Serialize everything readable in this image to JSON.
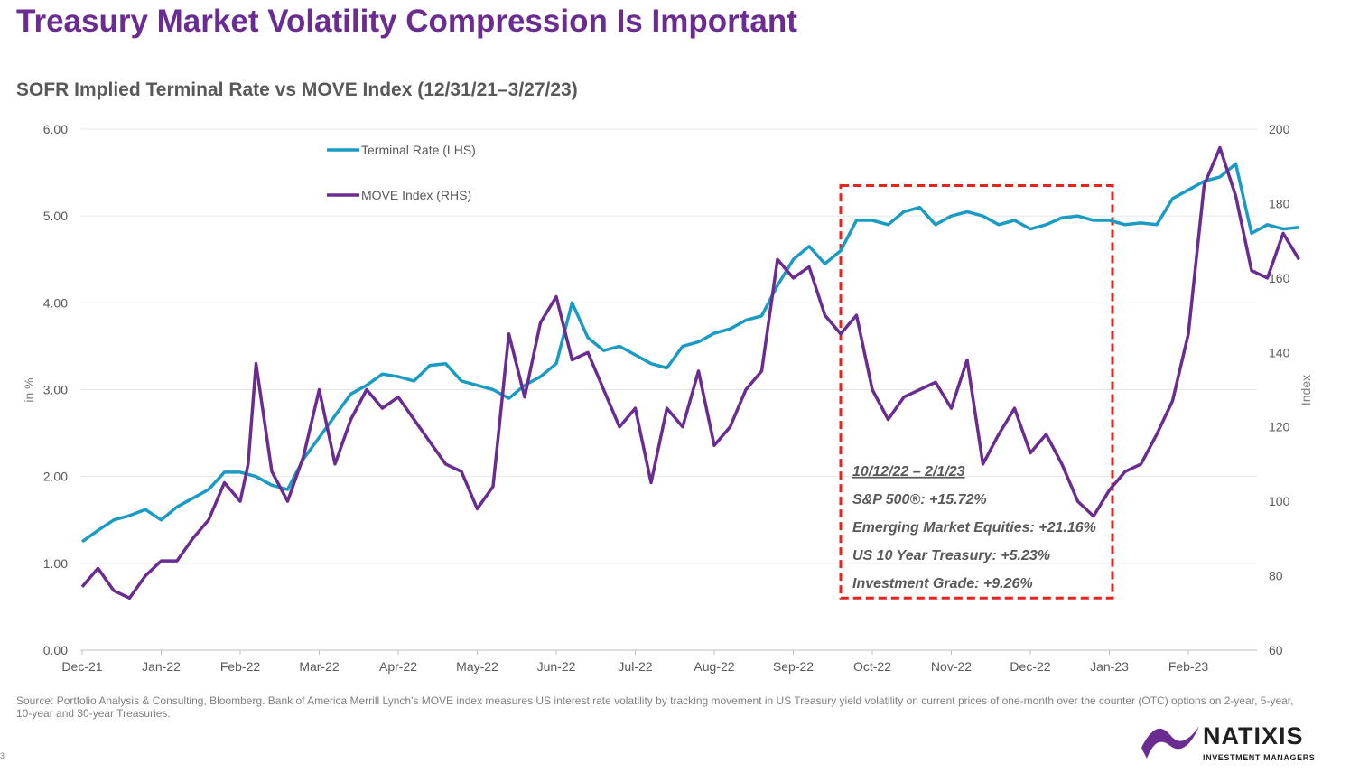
{
  "header": {
    "title": "Treasury Market Volatility Compression Is Important",
    "subtitle": "SOFR Implied Terminal Rate vs MOVE Index (12/31/21–3/27/23)"
  },
  "footer": {
    "source": "Source: Portfolio Analysis & Consulting, Bloomberg. Bank of America Merrill Lynch's MOVE index measures US interest rate volatility by tracking movement in US Treasury yield volatility on current prices of one-month over the counter (OTC) options on 2-year, 5-year, 10-year and 30-year Treasuries.",
    "page_number": "3"
  },
  "logo": {
    "name": "NATIXIS",
    "tagline": "INVESTMENT MANAGERS",
    "icon": "natixis-wave-icon",
    "color": "#6a2c91"
  },
  "chart_data": {
    "type": "line",
    "ylabel": "in %",
    "ylabel_right": "Index",
    "ylim": [
      0,
      6
    ],
    "ylim_right": [
      60,
      200
    ],
    "yticks": [
      "0.00",
      "1.00",
      "2.00",
      "3.00",
      "4.00",
      "5.00",
      "6.00"
    ],
    "yticks_right": [
      "60",
      "80",
      "100",
      "120",
      "140",
      "160",
      "180",
      "200"
    ],
    "categories": [
      "Dec-21",
      "Jan-22",
      "Feb-22",
      "Mar-22",
      "Apr-22",
      "May-22",
      "Jun-22",
      "Jul-22",
      "Aug-22",
      "Sep-22",
      "Oct-22",
      "Nov-22",
      "Dec-22",
      "Jan-23",
      "Feb-23"
    ],
    "legend_position": "top-left",
    "grid": "horizontal",
    "series": [
      {
        "name": "Terminal Rate (LHS)",
        "axis": "left",
        "color": "#1a9bc4",
        "x": [
          0,
          0.2,
          0.4,
          0.6,
          0.8,
          1.0,
          1.2,
          1.4,
          1.6,
          1.8,
          2.0,
          2.2,
          2.4,
          2.6,
          2.8,
          3.0,
          3.2,
          3.4,
          3.6,
          3.8,
          4.0,
          4.2,
          4.4,
          4.6,
          4.8,
          5.0,
          5.2,
          5.4,
          5.6,
          5.8,
          6.0,
          6.2,
          6.4,
          6.6,
          6.8,
          7.0,
          7.2,
          7.4,
          7.6,
          7.8,
          8.0,
          8.2,
          8.4,
          8.6,
          8.8,
          9.0,
          9.2,
          9.4,
          9.6,
          9.8,
          10.0,
          10.2,
          10.4,
          10.6,
          10.8,
          11.0,
          11.2,
          11.4,
          11.6,
          11.8,
          12.0,
          12.2,
          12.4,
          12.6,
          12.8,
          13.0,
          13.2,
          13.4,
          13.6,
          13.8,
          14.0,
          14.2,
          14.4,
          14.6,
          14.8,
          15.0,
          15.2,
          15.4
        ],
        "values": [
          1.25,
          1.38,
          1.5,
          1.55,
          1.62,
          1.5,
          1.65,
          1.75,
          1.85,
          2.05,
          2.05,
          2.0,
          1.9,
          1.85,
          2.2,
          2.45,
          2.7,
          2.95,
          3.05,
          3.18,
          3.15,
          3.1,
          3.28,
          3.3,
          3.1,
          3.05,
          3.0,
          2.9,
          3.05,
          3.15,
          3.3,
          4.0,
          3.6,
          3.45,
          3.5,
          3.4,
          3.3,
          3.25,
          3.5,
          3.55,
          3.65,
          3.7,
          3.8,
          3.85,
          4.2,
          4.5,
          4.65,
          4.45,
          4.6,
          4.95,
          4.95,
          4.9,
          5.05,
          5.1,
          4.9,
          5.0,
          5.05,
          5.0,
          4.9,
          4.95,
          4.85,
          4.9,
          4.98,
          5.0,
          4.95,
          4.95,
          4.9,
          4.92,
          4.9,
          5.2,
          5.3,
          5.4,
          5.45,
          5.6,
          4.8,
          4.9,
          4.85,
          4.87
        ]
      },
      {
        "name": "MOVE Index (RHS)",
        "axis": "right",
        "color": "#6a2c91",
        "x": [
          0,
          0.2,
          0.4,
          0.6,
          0.8,
          1.0,
          1.2,
          1.4,
          1.6,
          1.8,
          2.0,
          2.1,
          2.2,
          2.4,
          2.6,
          2.8,
          3.0,
          3.2,
          3.4,
          3.6,
          3.8,
          4.0,
          4.2,
          4.4,
          4.6,
          4.8,
          5.0,
          5.2,
          5.4,
          5.6,
          5.8,
          6.0,
          6.2,
          6.4,
          6.6,
          6.8,
          7.0,
          7.2,
          7.4,
          7.6,
          7.8,
          8.0,
          8.2,
          8.4,
          8.6,
          8.8,
          9.0,
          9.2,
          9.4,
          9.6,
          9.8,
          10.0,
          10.2,
          10.4,
          10.6,
          10.8,
          11.0,
          11.2,
          11.4,
          11.6,
          11.8,
          12.0,
          12.2,
          12.4,
          12.6,
          12.8,
          13.0,
          13.2,
          13.4,
          13.6,
          13.8,
          14.0,
          14.2,
          14.4,
          14.6,
          14.8,
          15.0,
          15.2,
          15.4
        ],
        "values": [
          77,
          82,
          76,
          74,
          80,
          84,
          84,
          90,
          95,
          105,
          100,
          110,
          137,
          108,
          100,
          112,
          130,
          110,
          122,
          130,
          125,
          128,
          122,
          116,
          110,
          108,
          98,
          104,
          145,
          128,
          148,
          155,
          138,
          140,
          130,
          120,
          125,
          105,
          125,
          120,
          135,
          115,
          120,
          130,
          135,
          165,
          160,
          163,
          150,
          145,
          150,
          130,
          122,
          128,
          130,
          132,
          125,
          138,
          110,
          118,
          125,
          113,
          118,
          110,
          100,
          96,
          103,
          108,
          110,
          118,
          127,
          145,
          185,
          195,
          182,
          162,
          160,
          172,
          165
        ]
      }
    ],
    "highlight": {
      "color": "#e8231d",
      "x_range": [
        9.6,
        13.04
      ],
      "y_range": [
        0.6,
        5.35
      ]
    },
    "annotation": {
      "lines": [
        "10/12/22 – 2/1/23",
        "S&P 500®: +15.72%",
        "Emerging Market Equities: +21.16%",
        "US 10 Year Treasury: +5.23%",
        "Investment Grade: +9.26%"
      ]
    }
  }
}
